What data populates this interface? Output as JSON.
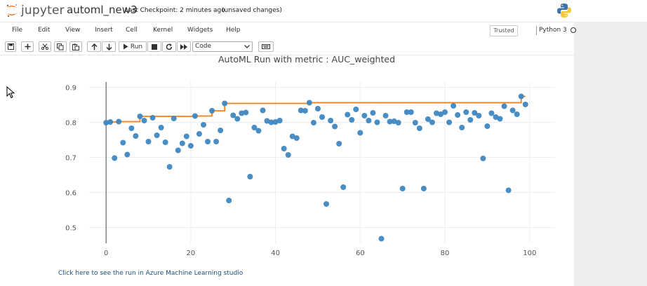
{
  "header": {
    "logo_text": "jupyter",
    "notebook_name": "automl_new3",
    "checkpoint": "Last Checkpoint: 2 minutes ago",
    "unsaved": "(unsaved changes)",
    "python_logo": "python-logo-icon"
  },
  "menu": {
    "items": [
      "File",
      "Edit",
      "View",
      "Insert",
      "Cell",
      "Kernel",
      "Widgets",
      "Help"
    ],
    "trusted": "Trusted",
    "kernel": "Python 3"
  },
  "toolbar": {
    "run_label": "Run",
    "cell_type": "Code",
    "icons": [
      "save-icon",
      "plus-icon",
      "cut-icon",
      "copy-icon",
      "paste-icon",
      "arrow-up-icon",
      "arrow-down-icon",
      "run-icon",
      "stop-icon",
      "restart-icon",
      "fast-forward-icon",
      "keyboard-icon"
    ]
  },
  "output": {
    "link_text": "Click here to see the run in Azure Machine Learning studio"
  },
  "colors": {
    "scatter": "#3f87c2",
    "best_line": "#ff7f0e",
    "accent_orange": "#f37726"
  },
  "chart_data": {
    "type": "scatter",
    "title": "AutoML Run with metric : AUC_weighted",
    "xlabel": "",
    "ylabel": "",
    "xlim": [
      -4,
      106
    ],
    "ylim": [
      0.455,
      0.915
    ],
    "x_ticks": [
      0,
      20,
      40,
      60,
      80,
      100
    ],
    "y_ticks": [
      0.5,
      0.6,
      0.7,
      0.8,
      0.9
    ],
    "grid": true,
    "series": [
      {
        "type": "scatter",
        "x": [
          0,
          1,
          2,
          3,
          4,
          5,
          6,
          7,
          8,
          9,
          10,
          11,
          12,
          13,
          14,
          15,
          16,
          17,
          18,
          19,
          20,
          21,
          22,
          23,
          24,
          25,
          26,
          27,
          28,
          29,
          30,
          31,
          32,
          33,
          34,
          35,
          36,
          37,
          38,
          39,
          40,
          41,
          42,
          43,
          44,
          45,
          46,
          47,
          48,
          49,
          50,
          51,
          52,
          53,
          54,
          55,
          56,
          57,
          58,
          59,
          60,
          61,
          62,
          63,
          64,
          65,
          66,
          67,
          68,
          69,
          70,
          71,
          72,
          73,
          74,
          75,
          76,
          77,
          78,
          79,
          80,
          81,
          82,
          83,
          84,
          85,
          86,
          87,
          88,
          89,
          90,
          91,
          92,
          93,
          94,
          95,
          96,
          97,
          98,
          99
        ],
        "y": [
          0.799,
          0.801,
          0.698,
          0.802,
          0.742,
          0.708,
          0.783,
          0.761,
          0.817,
          0.805,
          0.745,
          0.813,
          0.763,
          0.785,
          0.743,
          0.673,
          0.811,
          0.72,
          0.74,
          0.76,
          0.733,
          0.818,
          0.767,
          0.793,
          0.745,
          0.833,
          0.745,
          0.777,
          0.854,
          0.577,
          0.82,
          0.81,
          0.826,
          0.828,
          0.645,
          0.785,
          0.776,
          0.834,
          0.804,
          0.8,
          0.801,
          0.805,
          0.725,
          0.707,
          0.76,
          0.755,
          0.834,
          0.833,
          0.856,
          0.799,
          0.839,
          0.815,
          0.567,
          0.805,
          0.788,
          0.739,
          0.615,
          0.822,
          0.807,
          0.837,
          0.77,
          0.819,
          0.805,
          0.827,
          0.8,
          0.468,
          0.819,
          0.802,
          0.803,
          0.799,
          0.611,
          0.829,
          0.829,
          0.799,
          0.783,
          0.611,
          0.809,
          0.8,
          0.826,
          0.823,
          0.829,
          0.8,
          0.847,
          0.821,
          0.785,
          0.829,
          0.807,
          0.827,
          0.819,
          0.697,
          0.789,
          0.826,
          0.815,
          0.81,
          0.846,
          0.606,
          0.834,
          0.823,
          0.874,
          0.851
        ]
      },
      {
        "type": "line",
        "x": [
          0,
          1,
          2,
          3,
          4,
          5,
          6,
          7,
          8,
          9,
          10,
          11,
          12,
          13,
          14,
          15,
          16,
          17,
          18,
          19,
          20,
          21,
          22,
          23,
          24,
          25,
          26,
          27,
          28,
          29,
          30,
          31,
          32,
          33,
          34,
          35,
          36,
          37,
          38,
          39,
          40,
          41,
          42,
          43,
          44,
          45,
          46,
          47,
          48,
          49,
          50,
          51,
          52,
          53,
          54,
          55,
          56,
          57,
          58,
          59,
          60,
          61,
          62,
          63,
          64,
          65,
          66,
          67,
          68,
          69,
          70,
          71,
          72,
          73,
          74,
          75,
          76,
          77,
          78,
          79,
          80,
          81,
          82,
          83,
          84,
          85,
          86,
          87,
          88,
          89,
          90,
          91,
          92,
          93,
          94,
          95,
          96,
          97,
          98,
          99
        ],
        "y": [
          0.799,
          0.801,
          0.801,
          0.802,
          0.802,
          0.802,
          0.802,
          0.802,
          0.817,
          0.817,
          0.817,
          0.817,
          0.817,
          0.817,
          0.817,
          0.817,
          0.817,
          0.817,
          0.817,
          0.817,
          0.817,
          0.818,
          0.818,
          0.818,
          0.818,
          0.833,
          0.833,
          0.833,
          0.854,
          0.854,
          0.854,
          0.854,
          0.854,
          0.854,
          0.854,
          0.854,
          0.854,
          0.854,
          0.854,
          0.854,
          0.854,
          0.854,
          0.854,
          0.854,
          0.854,
          0.854,
          0.854,
          0.854,
          0.856,
          0.856,
          0.856,
          0.856,
          0.856,
          0.856,
          0.856,
          0.856,
          0.856,
          0.856,
          0.856,
          0.856,
          0.856,
          0.856,
          0.856,
          0.856,
          0.856,
          0.856,
          0.856,
          0.856,
          0.856,
          0.856,
          0.856,
          0.856,
          0.856,
          0.856,
          0.856,
          0.856,
          0.856,
          0.856,
          0.856,
          0.856,
          0.856,
          0.856,
          0.856,
          0.856,
          0.856,
          0.856,
          0.856,
          0.856,
          0.856,
          0.856,
          0.856,
          0.856,
          0.856,
          0.856,
          0.856,
          0.856,
          0.856,
          0.856,
          0.874,
          0.874
        ]
      }
    ]
  }
}
